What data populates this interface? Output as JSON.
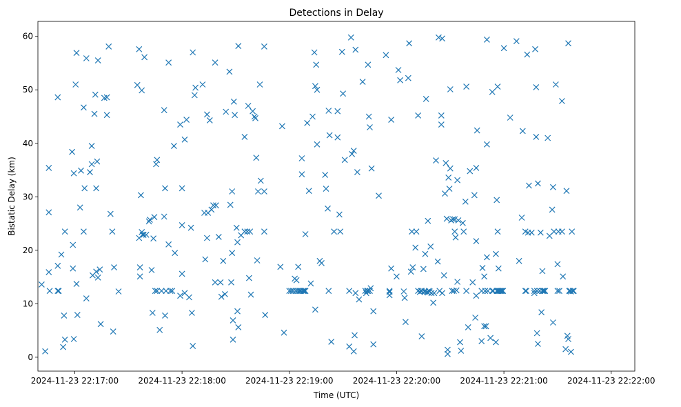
{
  "chart_data": {
    "type": "scatter",
    "title": "Detections in Delay",
    "xlabel": "Time (UTC)",
    "ylabel": "Bistatic Delay (km)",
    "marker": "x",
    "color": "#1f77b4",
    "grid": false,
    "xlim": [
      -20.6,
      313.2
    ],
    "ylim": [
      -2.6,
      62.8
    ],
    "x_unit": "seconds after 2024-11-23 22:17:00",
    "x_ticks": [
      {
        "value": 0,
        "label": "2024-11-23 22:17:00"
      },
      {
        "value": 60,
        "label": "2024-11-23 22:18:00"
      },
      {
        "value": 120,
        "label": "2024-11-23 22:19:00"
      },
      {
        "value": 180,
        "label": "2024-11-23 22:20:00"
      },
      {
        "value": 240,
        "label": "2024-11-23 22:21:00"
      },
      {
        "value": 300,
        "label": "2024-11-23 22:22:00"
      }
    ],
    "y_ticks": [
      {
        "value": 0,
        "label": "0"
      },
      {
        "value": 10,
        "label": "10"
      },
      {
        "value": 20,
        "label": "20"
      },
      {
        "value": 30,
        "label": "30"
      },
      {
        "value": 40,
        "label": "40"
      },
      {
        "value": 50,
        "label": "50"
      },
      {
        "value": 60,
        "label": "60"
      }
    ],
    "points": [
      [
        -18.5,
        13.6
      ],
      [
        -16.5,
        1.1
      ],
      [
        -14.5,
        35.4
      ],
      [
        -14.5,
        27.1
      ],
      [
        -14.5,
        15.9
      ],
      [
        -14.0,
        12.4
      ],
      [
        -9.5,
        17.1
      ],
      [
        -9.5,
        48.6
      ],
      [
        -9.5,
        12.4
      ],
      [
        -9.0,
        12.4
      ],
      [
        -7.5,
        19.2
      ],
      [
        -6.5,
        1.9
      ],
      [
        -6.0,
        7.8
      ],
      [
        -5.5,
        23.5
      ],
      [
        -5.5,
        3.3
      ],
      [
        -1.5,
        38.4
      ],
      [
        -1.0,
        21.0
      ],
      [
        -1.0,
        16.6
      ],
      [
        -0.5,
        34.4
      ],
      [
        -0.5,
        3.4
      ],
      [
        0.5,
        51.0
      ],
      [
        1.0,
        56.9
      ],
      [
        1.0,
        13.7
      ],
      [
        1.5,
        7.9
      ],
      [
        3.5,
        34.9
      ],
      [
        3.0,
        28.0
      ],
      [
        5.0,
        46.7
      ],
      [
        5.0,
        23.5
      ],
      [
        5.5,
        31.6
      ],
      [
        6.5,
        11.0
      ],
      [
        6.5,
        55.9
      ],
      [
        8.5,
        34.6
      ],
      [
        9.5,
        39.5
      ],
      [
        9.5,
        36.1
      ],
      [
        10.0,
        15.3
      ],
      [
        11.5,
        49.1
      ],
      [
        11.0,
        45.5
      ],
      [
        12.0,
        31.6
      ],
      [
        12.0,
        16.0
      ],
      [
        12.5,
        36.6
      ],
      [
        13.0,
        55.5
      ],
      [
        13.0,
        14.9
      ],
      [
        14.0,
        16.4
      ],
      [
        14.5,
        6.2
      ],
      [
        16.5,
        48.5
      ],
      [
        18.0,
        45.3
      ],
      [
        18.0,
        48.6
      ],
      [
        19.0,
        58.1
      ],
      [
        20.0,
        26.8
      ],
      [
        21.0,
        23.5
      ],
      [
        21.5,
        4.8
      ],
      [
        22.0,
        16.8
      ],
      [
        24.5,
        12.3
      ],
      [
        35.0,
        50.9
      ],
      [
        36.0,
        57.6
      ],
      [
        36.0,
        22.3
      ],
      [
        37.0,
        30.3
      ],
      [
        36.5,
        16.8
      ],
      [
        36.5,
        15.1
      ],
      [
        37.5,
        49.9
      ],
      [
        37.5,
        23.4
      ],
      [
        38.0,
        22.9
      ],
      [
        38.5,
        22.9
      ],
      [
        39.0,
        56.1
      ],
      [
        40.0,
        22.9
      ],
      [
        41.5,
        25.4
      ],
      [
        42.0,
        25.7
      ],
      [
        43.0,
        16.3
      ],
      [
        43.5,
        8.3
      ],
      [
        44.0,
        22.2
      ],
      [
        44.5,
        26.2
      ],
      [
        45.0,
        12.4
      ],
      [
        45.5,
        36.1
      ],
      [
        46.0,
        36.9
      ],
      [
        46.0,
        12.4
      ],
      [
        47.5,
        5.1
      ],
      [
        48.5,
        12.4
      ],
      [
        50.0,
        46.2
      ],
      [
        50.0,
        26.3
      ],
      [
        50.5,
        31.6
      ],
      [
        50.5,
        7.8
      ],
      [
        51.0,
        12.4
      ],
      [
        52.5,
        55.1
      ],
      [
        52.5,
        21.1
      ],
      [
        53.5,
        12.4
      ],
      [
        54.5,
        12.4
      ],
      [
        55.5,
        39.5
      ],
      [
        56.0,
        19.5
      ],
      [
        59.0,
        43.5
      ],
      [
        59.0,
        11.5
      ],
      [
        60.0,
        31.6
      ],
      [
        60.0,
        24.7
      ],
      [
        60.0,
        15.6
      ],
      [
        61.5,
        40.7
      ],
      [
        61.5,
        12.0
      ],
      [
        62.5,
        44.4
      ],
      [
        64.0,
        11.2
      ],
      [
        65.0,
        24.2
      ],
      [
        65.5,
        8.3
      ],
      [
        66.0,
        57.0
      ],
      [
        66.0,
        2.1
      ],
      [
        67.0,
        49.0
      ],
      [
        67.5,
        50.4
      ],
      [
        71.5,
        51.0
      ],
      [
        72.5,
        27.0
      ],
      [
        73.0,
        18.3
      ],
      [
        74.0,
        45.4
      ],
      [
        74.0,
        22.3
      ],
      [
        74.5,
        27.0
      ],
      [
        75.5,
        44.3
      ],
      [
        76.5,
        27.6
      ],
      [
        77.5,
        28.4
      ],
      [
        78.5,
        55.1
      ],
      [
        78.5,
        14.0
      ],
      [
        79.0,
        28.4
      ],
      [
        80.5,
        22.5
      ],
      [
        81.5,
        14.0
      ],
      [
        82.0,
        11.3
      ],
      [
        83.0,
        18.0
      ],
      [
        84.0,
        11.8
      ],
      [
        84.5,
        45.9
      ],
      [
        86.5,
        53.4
      ],
      [
        87.0,
        28.5
      ],
      [
        87.5,
        14.0
      ],
      [
        88.0,
        31.0
      ],
      [
        88.0,
        19.5
      ],
      [
        88.5,
        6.9
      ],
      [
        88.5,
        3.3
      ],
      [
        89.0,
        47.8
      ],
      [
        89.5,
        45.3
      ],
      [
        90.5,
        24.2
      ],
      [
        91.0,
        21.5
      ],
      [
        91.0,
        8.6
      ],
      [
        91.5,
        58.2
      ],
      [
        91.5,
        5.6
      ],
      [
        93.0,
        22.8
      ],
      [
        95.0,
        41.2
      ],
      [
        95.0,
        23.5
      ],
      [
        96.5,
        23.5
      ],
      [
        97.0,
        47.0
      ],
      [
        97.5,
        14.8
      ],
      [
        98.0,
        23.5
      ],
      [
        98.5,
        11.7
      ],
      [
        99.5,
        46.0
      ],
      [
        100.5,
        45.0
      ],
      [
        101.0,
        44.7
      ],
      [
        101.5,
        37.3
      ],
      [
        102.5,
        31.0
      ],
      [
        102.0,
        18.1
      ],
      [
        103.5,
        51.0
      ],
      [
        104.0,
        33.0
      ],
      [
        106.0,
        58.1
      ],
      [
        106.0,
        31.0
      ],
      [
        106.0,
        23.5
      ],
      [
        106.5,
        7.9
      ],
      [
        116.0,
        43.2
      ],
      [
        115.0,
        16.9
      ],
      [
        117.0,
        4.6
      ],
      [
        120.0,
        12.4
      ],
      [
        121.0,
        12.4
      ],
      [
        122.0,
        12.4
      ],
      [
        123.0,
        14.7
      ],
      [
        123.5,
        12.4
      ],
      [
        124.0,
        14.4
      ],
      [
        124.5,
        12.4
      ],
      [
        125.0,
        16.9
      ],
      [
        125.5,
        12.4
      ],
      [
        126.0,
        12.4
      ],
      [
        126.5,
        12.4
      ],
      [
        127.0,
        34.2
      ],
      [
        127.0,
        37.2
      ],
      [
        127.5,
        12.4
      ],
      [
        128.0,
        12.4
      ],
      [
        128.5,
        12.4
      ],
      [
        129.0,
        12.4
      ],
      [
        129.0,
        23.0
      ],
      [
        130.0,
        43.8
      ],
      [
        131.0,
        31.1
      ],
      [
        132.0,
        13.8
      ],
      [
        133.0,
        45.0
      ],
      [
        134.5,
        50.7
      ],
      [
        134.0,
        57.0
      ],
      [
        134.5,
        8.9
      ],
      [
        135.0,
        54.7
      ],
      [
        135.5,
        50.0
      ],
      [
        135.5,
        39.8
      ],
      [
        137.0,
        18.0
      ],
      [
        138.0,
        17.6
      ],
      [
        140.0,
        34.1
      ],
      [
        140.5,
        31.5
      ],
      [
        141.5,
        27.8
      ],
      [
        142.0,
        46.1
      ],
      [
        142.0,
        12.4
      ],
      [
        142.5,
        41.5
      ],
      [
        143.5,
        2.9
      ],
      [
        145.0,
        23.5
      ],
      [
        147.0,
        41.1
      ],
      [
        147.0,
        46.0
      ],
      [
        148.5,
        23.5
      ],
      [
        148.0,
        26.7
      ],
      [
        149.5,
        57.1
      ],
      [
        150.0,
        49.3
      ],
      [
        151.0,
        36.9
      ],
      [
        153.5,
        12.4
      ],
      [
        153.5,
        2.0
      ],
      [
        154.5,
        59.8
      ],
      [
        155.0,
        38.0
      ],
      [
        156.0,
        38.6
      ],
      [
        156.0,
        1.1
      ],
      [
        156.5,
        4.1
      ],
      [
        157.0,
        12.0
      ],
      [
        157.0,
        57.5
      ],
      [
        158.0,
        34.6
      ],
      [
        159.0,
        10.8
      ],
      [
        161.0,
        51.5
      ],
      [
        162.5,
        12.4
      ],
      [
        163.0,
        12.0
      ],
      [
        163.5,
        12.4
      ],
      [
        164.0,
        12.4
      ],
      [
        164.5,
        45.0
      ],
      [
        164.0,
        54.7
      ],
      [
        165.0,
        43.0
      ],
      [
        165.0,
        12.4
      ],
      [
        165.5,
        12.9
      ],
      [
        166.0,
        35.3
      ],
      [
        167.0,
        8.6
      ],
      [
        167.0,
        2.4
      ],
      [
        170.0,
        30.2
      ],
      [
        174.0,
        56.5
      ],
      [
        177.0,
        44.4
      ],
      [
        177.0,
        16.6
      ],
      [
        176.0,
        12.4
      ],
      [
        176.0,
        11.6
      ],
      [
        176.0,
        12.2
      ],
      [
        180.0,
        15.1
      ],
      [
        181.0,
        53.7
      ],
      [
        182.0,
        51.8
      ],
      [
        184.0,
        12.3
      ],
      [
        184.5,
        11.1
      ],
      [
        185.0,
        6.6
      ],
      [
        186.5,
        52.2
      ],
      [
        187.0,
        58.7
      ],
      [
        188.0,
        16.0
      ],
      [
        188.5,
        23.5
      ],
      [
        189.0,
        16.8
      ],
      [
        190.5,
        20.5
      ],
      [
        191.0,
        23.5
      ],
      [
        192.0,
        45.2
      ],
      [
        192.0,
        12.4
      ],
      [
        193.0,
        12.2
      ],
      [
        193.5,
        12.4
      ],
      [
        194.0,
        12.4
      ],
      [
        194.0,
        3.9
      ],
      [
        195.0,
        16.5
      ],
      [
        195.5,
        12.3
      ],
      [
        196.0,
        12.3
      ],
      [
        196.5,
        48.3
      ],
      [
        196.0,
        19.3
      ],
      [
        197.0,
        12.2
      ],
      [
        197.5,
        25.5
      ],
      [
        197.5,
        12.1
      ],
      [
        198.5,
        12.3
      ],
      [
        198.0,
        12.4
      ],
      [
        199.0,
        20.7
      ],
      [
        199.5,
        12.0
      ],
      [
        200.5,
        10.2
      ],
      [
        201.0,
        12.0
      ],
      [
        202.0,
        36.8
      ],
      [
        203.0,
        17.9
      ],
      [
        203.5,
        59.8
      ],
      [
        204.0,
        12.4
      ],
      [
        205.0,
        43.5
      ],
      [
        205.0,
        45.2
      ],
      [
        205.5,
        59.6
      ],
      [
        205.5,
        12.0
      ],
      [
        206.5,
        15.3
      ],
      [
        207.0,
        30.6
      ],
      [
        207.5,
        36.3
      ],
      [
        208.0,
        25.9
      ],
      [
        208.5,
        0.6
      ],
      [
        208.5,
        1.4
      ],
      [
        209.0,
        33.6
      ],
      [
        209.5,
        31.5
      ],
      [
        210.0,
        35.3
      ],
      [
        210.0,
        50.1
      ],
      [
        210.5,
        25.6
      ],
      [
        211.0,
        12.4
      ],
      [
        211.5,
        25.8
      ],
      [
        212.0,
        12.4
      ],
      [
        212.5,
        25.8
      ],
      [
        212.5,
        23.5
      ],
      [
        213.0,
        22.4
      ],
      [
        213.5,
        12.5
      ],
      [
        214.0,
        33.1
      ],
      [
        214.0,
        14.1
      ],
      [
        214.5,
        25.6
      ],
      [
        215.5,
        2.8
      ],
      [
        216.0,
        1.2
      ],
      [
        217.0,
        25.1
      ],
      [
        217.5,
        23.5
      ],
      [
        218.5,
        29.1
      ],
      [
        219.0,
        50.6
      ],
      [
        219.0,
        12.4
      ],
      [
        220.0,
        5.6
      ],
      [
        221.0,
        34.8
      ],
      [
        222.5,
        14.0
      ],
      [
        223.5,
        30.3
      ],
      [
        224.0,
        7.4
      ],
      [
        224.5,
        21.7
      ],
      [
        224.5,
        35.4
      ],
      [
        224.5,
        11.5
      ],
      [
        225.0,
        42.4
      ],
      [
        227.5,
        12.4
      ],
      [
        227.5,
        3.0
      ],
      [
        228.0,
        16.7
      ],
      [
        229.0,
        15.1
      ],
      [
        229.0,
        5.8
      ],
      [
        229.5,
        12.4
      ],
      [
        230.0,
        5.8
      ],
      [
        230.5,
        39.8
      ],
      [
        230.5,
        59.4
      ],
      [
        230.5,
        18.7
      ],
      [
        231.0,
        12.4
      ],
      [
        232.5,
        3.6
      ],
      [
        233.5,
        49.6
      ],
      [
        233.5,
        12.4
      ],
      [
        234.0,
        12.4
      ],
      [
        235.5,
        19.3
      ],
      [
        235.5,
        2.8
      ],
      [
        236.0,
        29.4
      ],
      [
        236.0,
        12.4
      ],
      [
        236.5,
        23.5
      ],
      [
        236.5,
        12.4
      ],
      [
        236.5,
        50.6
      ],
      [
        237.0,
        12.4
      ],
      [
        237.0,
        16.6
      ],
      [
        237.5,
        12.4
      ],
      [
        238.0,
        12.4
      ],
      [
        238.5,
        12.4
      ],
      [
        239.0,
        12.4
      ],
      [
        239.5,
        12.4
      ],
      [
        240.0,
        57.8
      ],
      [
        243.5,
        44.8
      ],
      [
        247.0,
        59.1
      ],
      [
        248.5,
        18.0
      ],
      [
        250.0,
        26.1
      ],
      [
        250.5,
        42.3
      ],
      [
        252.0,
        23.5
      ],
      [
        252.0,
        12.4
      ],
      [
        252.5,
        12.4
      ],
      [
        253.0,
        56.6
      ],
      [
        253.5,
        23.3
      ],
      [
        254.0,
        32.1
      ],
      [
        255.5,
        23.3
      ],
      [
        257.0,
        12.4
      ],
      [
        257.0,
        12.0
      ],
      [
        257.5,
        57.6
      ],
      [
        258.0,
        41.2
      ],
      [
        258.0,
        50.5
      ],
      [
        258.5,
        12.4
      ],
      [
        258.5,
        4.5
      ],
      [
        259.0,
        32.5
      ],
      [
        259.0,
        2.5
      ],
      [
        260.0,
        12.4
      ],
      [
        260.5,
        23.3
      ],
      [
        261.0,
        8.4
      ],
      [
        261.5,
        16.1
      ],
      [
        261.5,
        12.4
      ],
      [
        262.0,
        12.4
      ],
      [
        262.5,
        12.4
      ],
      [
        263.0,
        12.4
      ],
      [
        264.5,
        41.0
      ],
      [
        265.5,
        22.7
      ],
      [
        267.0,
        27.6
      ],
      [
        267.5,
        31.8
      ],
      [
        267.5,
        6.5
      ],
      [
        268.0,
        23.5
      ],
      [
        269.0,
        51.0
      ],
      [
        270.0,
        12.4
      ],
      [
        270.0,
        17.4
      ],
      [
        270.5,
        23.5
      ],
      [
        271.0,
        12.4
      ],
      [
        272.5,
        47.9
      ],
      [
        272.5,
        23.5
      ],
      [
        273.0,
        15.1
      ],
      [
        274.5,
        1.5
      ],
      [
        275.0,
        31.1
      ],
      [
        275.5,
        4.0
      ],
      [
        276.0,
        3.4
      ],
      [
        276.0,
        58.7
      ],
      [
        276.5,
        12.4
      ],
      [
        277.0,
        12.4
      ],
      [
        277.5,
        1.0
      ],
      [
        277.5,
        12.3
      ],
      [
        278.0,
        23.5
      ],
      [
        278.5,
        12.4
      ],
      [
        279.0,
        12.4
      ]
    ]
  }
}
